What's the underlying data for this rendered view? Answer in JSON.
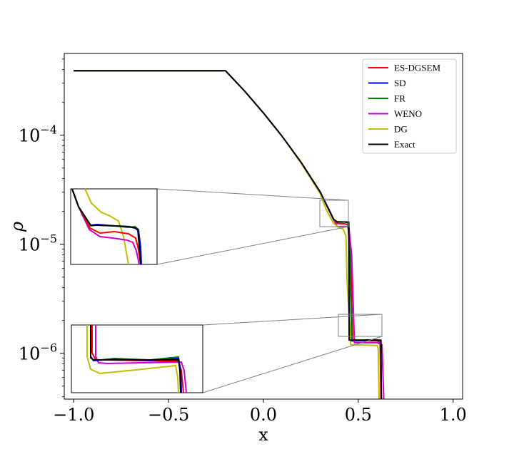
{
  "chart_data": {
    "type": "line",
    "title": "",
    "xlabel": "x",
    "ylabel": "ρ",
    "xlim": [
      -1.05,
      1.05
    ],
    "ylim_log10": [
      -6.42,
      -3.25
    ],
    "yscale": "log",
    "grid": false,
    "legend_position": "top-right",
    "x_ticks": [
      {
        "value": -1.0,
        "label": "−1.0"
      },
      {
        "value": -0.5,
        "label": "−0.5"
      },
      {
        "value": 0.0,
        "label": "0.0"
      },
      {
        "value": 0.5,
        "label": "0.5"
      },
      {
        "value": 1.0,
        "label": "1.0"
      }
    ],
    "y_ticks": [
      {
        "exp": -4,
        "base": "10",
        "sup": "−4"
      },
      {
        "exp": -5,
        "base": "10",
        "sup": "−5"
      },
      {
        "exp": -6,
        "base": "10",
        "sup": "−6"
      }
    ],
    "series": [
      {
        "name": "ES-DGSEM",
        "color": "#ff0000",
        "x": [
          -1.0,
          -0.2,
          -0.1,
          0.0,
          0.1,
          0.2,
          0.3,
          0.37,
          0.39,
          0.43,
          0.445,
          0.46,
          0.47,
          0.6,
          0.615,
          0.62,
          1.0
        ],
        "y": [
          0.00039,
          0.00039,
          0.000255,
          0.00016,
          9.7e-05,
          5.6e-05,
          3e-05,
          1.7e-05,
          1.55e-05,
          1.54e-05,
          1.5e-05,
          9e-06,
          1.3e-06,
          1.3e-06,
          1.25e-06,
          3.6e-07,
          3.6e-07
        ]
      },
      {
        "name": "SD",
        "color": "#0000ff",
        "x": [
          -1.0,
          -0.2,
          -0.1,
          0.0,
          0.1,
          0.2,
          0.3,
          0.37,
          0.39,
          0.43,
          0.445,
          0.455,
          0.465,
          0.6,
          0.618,
          0.622,
          1.0
        ],
        "y": [
          0.00039,
          0.00039,
          0.000255,
          0.00016,
          9.7e-05,
          5.6e-05,
          3e-05,
          1.68e-05,
          1.6e-05,
          1.6e-05,
          1.58e-05,
          9e-06,
          1.3e-06,
          1.32e-06,
          1.3e-06,
          3.6e-07,
          3.6e-07
        ]
      },
      {
        "name": "FR",
        "color": "#008000",
        "x": [
          -1.0,
          -0.2,
          -0.1,
          0.0,
          0.1,
          0.2,
          0.3,
          0.37,
          0.39,
          0.43,
          0.445,
          0.455,
          0.465,
          0.6,
          0.618,
          0.622,
          1.0
        ],
        "y": [
          0.00039,
          0.00039,
          0.000255,
          0.00016,
          9.7e-05,
          5.6e-05,
          3e-05,
          1.68e-05,
          1.61e-05,
          1.6e-05,
          1.59e-05,
          9e-06,
          1.32e-06,
          1.33e-06,
          1.3e-06,
          3.6e-07,
          3.6e-07
        ]
      },
      {
        "name": "WENO",
        "color": "#cc00cc",
        "x": [
          -1.0,
          -0.2,
          -0.1,
          0.0,
          0.1,
          0.2,
          0.3,
          0.37,
          0.39,
          0.43,
          0.45,
          0.465,
          0.48,
          0.6,
          0.625,
          0.635,
          1.0
        ],
        "y": [
          0.00039,
          0.00039,
          0.000255,
          0.00016,
          9.7e-05,
          5.6e-05,
          3e-05,
          1.68e-05,
          1.45e-05,
          1.46e-05,
          1.44e-05,
          8e-06,
          1.25e-06,
          1.25e-06,
          1.2e-06,
          3.6e-07,
          3.6e-07
        ]
      },
      {
        "name": "DG",
        "color": "#bfbf00",
        "x": [
          -1.0,
          -0.2,
          -0.1,
          0.0,
          0.1,
          0.2,
          0.3,
          0.33,
          0.37,
          0.4,
          0.42,
          0.435,
          0.44,
          0.46,
          0.6,
          0.605,
          0.61,
          1.0
        ],
        "y": [
          0.00039,
          0.00039,
          0.000255,
          0.00016,
          9.7e-05,
          5.5e-05,
          2.9e-05,
          2.1e-05,
          1.55e-05,
          1.42e-05,
          1.38e-05,
          1.2e-05,
          5e-06,
          1.2e-06,
          1.18e-06,
          1.1e-06,
          3.6e-07,
          3.6e-07
        ]
      },
      {
        "name": "Exact",
        "color": "#000000",
        "x": [
          -1.0,
          -0.2,
          -0.1,
          0.0,
          0.1,
          0.2,
          0.3,
          0.37,
          0.39,
          0.43,
          0.45,
          0.452,
          0.46,
          0.62,
          0.621,
          1.0
        ],
        "y": [
          0.00039,
          0.00039,
          0.000255,
          0.00016,
          9.7e-05,
          5.6e-05,
          3e-05,
          1.7e-05,
          1.6e-05,
          1.6e-05,
          1.6e-05,
          1.32e-06,
          1.32e-06,
          1.32e-06,
          3.6e-07,
          3.6e-07
        ]
      }
    ]
  }
}
